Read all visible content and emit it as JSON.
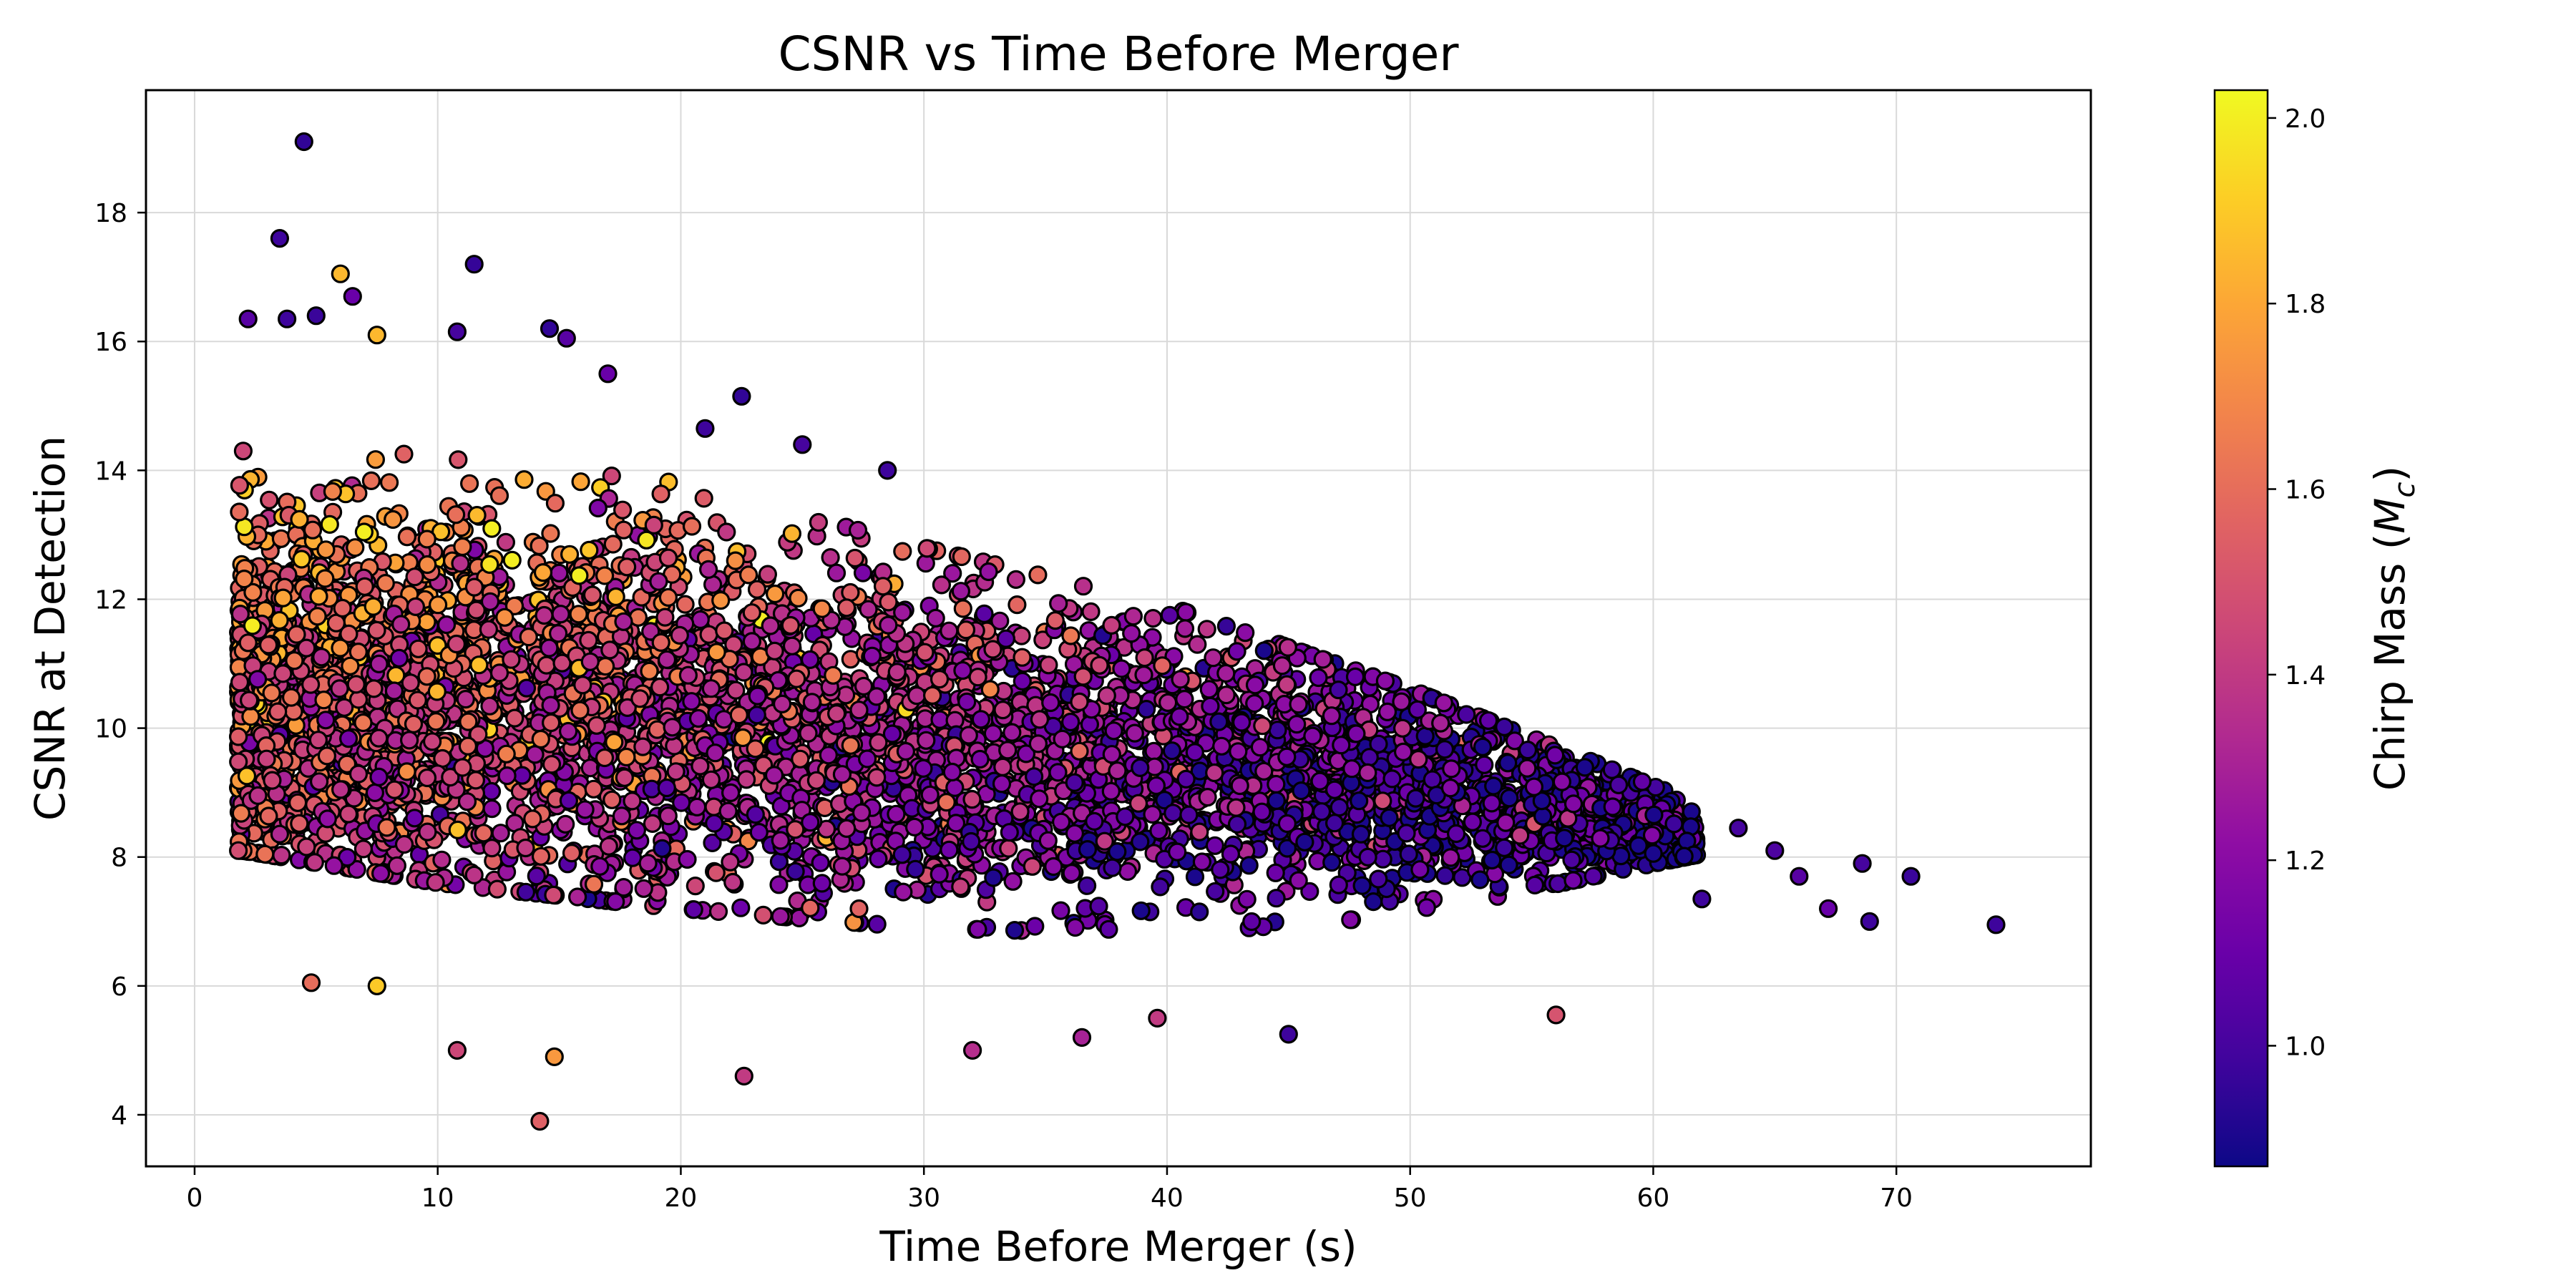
{
  "chart_data": {
    "type": "scatter",
    "title": "CSNR vs Time Before Merger",
    "xlabel": "Time Before Merger (s)",
    "ylabel": "CSNR at Detection",
    "xlim": [
      -2,
      78
    ],
    "ylim": [
      3.2,
      19.9
    ],
    "xticks": [
      0,
      10,
      20,
      30,
      40,
      50,
      60,
      70
    ],
    "yticks": [
      4,
      6,
      8,
      10,
      12,
      14,
      16,
      18
    ],
    "grid": true,
    "colormap": "plasma",
    "colorbar": {
      "label": "Chirp Mass (M_c)",
      "label_main": "Chirp Mass (",
      "label_symbol": "M",
      "label_sub": "c",
      "label_close": ")",
      "range": [
        0.87,
        2.03
      ],
      "ticks": [
        1.0,
        1.2,
        1.4,
        1.6,
        1.8,
        2.0
      ],
      "tick_labels": [
        "1.0",
        "1.2",
        "1.4",
        "1.6",
        "1.8",
        "2.0"
      ]
    },
    "colors": {
      "marker_edge": "#000000",
      "grid": "#d9d9d9",
      "plasma_stops": [
        "#0d0887",
        "#41049d",
        "#6a00a8",
        "#8f0da4",
        "#b12a90",
        "#cc4778",
        "#e16462",
        "#f2844b",
        "#fca636",
        "#fcce25",
        "#f0f921"
      ]
    },
    "notes": "Dense cloud of several thousand points; listed points are representative notable/outlier points. The bulk cloud is described by the envelope below and rendered procedurally.",
    "points": [
      {
        "x": 4.5,
        "y": 19.1,
        "c": 0.95
      },
      {
        "x": 3.5,
        "y": 17.6,
        "c": 0.98
      },
      {
        "x": 11.5,
        "y": 17.2,
        "c": 0.96
      },
      {
        "x": 6.0,
        "y": 17.05,
        "c": 1.85
      },
      {
        "x": 6.5,
        "y": 16.7,
        "c": 1.1
      },
      {
        "x": 2.2,
        "y": 16.35,
        "c": 1.05
      },
      {
        "x": 3.8,
        "y": 16.35,
        "c": 0.98
      },
      {
        "x": 5.0,
        "y": 16.4,
        "c": 0.97
      },
      {
        "x": 14.6,
        "y": 16.2,
        "c": 0.95
      },
      {
        "x": 10.8,
        "y": 16.15,
        "c": 1.0
      },
      {
        "x": 15.3,
        "y": 16.05,
        "c": 1.05
      },
      {
        "x": 7.5,
        "y": 16.1,
        "c": 1.85
      },
      {
        "x": 22.5,
        "y": 15.15,
        "c": 0.95
      },
      {
        "x": 17.0,
        "y": 15.5,
        "c": 1.1
      },
      {
        "x": 21.0,
        "y": 14.65,
        "c": 0.98
      },
      {
        "x": 25.0,
        "y": 14.4,
        "c": 1.0
      },
      {
        "x": 28.5,
        "y": 14.0,
        "c": 0.98
      },
      {
        "x": 2.0,
        "y": 14.3,
        "c": 1.45
      },
      {
        "x": 4.8,
        "y": 6.05,
        "c": 1.6
      },
      {
        "x": 7.5,
        "y": 6.0,
        "c": 1.9
      },
      {
        "x": 10.8,
        "y": 5.0,
        "c": 1.45
      },
      {
        "x": 14.8,
        "y": 4.9,
        "c": 1.75
      },
      {
        "x": 14.2,
        "y": 3.9,
        "c": 1.55
      },
      {
        "x": 22.6,
        "y": 4.6,
        "c": 1.4
      },
      {
        "x": 32.0,
        "y": 5.0,
        "c": 1.35
      },
      {
        "x": 36.5,
        "y": 5.2,
        "c": 1.3
      },
      {
        "x": 45.0,
        "y": 5.25,
        "c": 0.98
      },
      {
        "x": 56.0,
        "y": 5.55,
        "c": 1.5
      },
      {
        "x": 39.6,
        "y": 5.5,
        "c": 1.4
      },
      {
        "x": 62.0,
        "y": 7.35,
        "c": 0.98
      },
      {
        "x": 63.5,
        "y": 8.45,
        "c": 1.0
      },
      {
        "x": 65.0,
        "y": 8.1,
        "c": 1.02
      },
      {
        "x": 66.0,
        "y": 7.7,
        "c": 1.05
      },
      {
        "x": 67.2,
        "y": 7.2,
        "c": 1.1
      },
      {
        "x": 68.6,
        "y": 7.9,
        "c": 1.0
      },
      {
        "x": 68.9,
        "y": 7.0,
        "c": 0.98
      },
      {
        "x": 70.6,
        "y": 7.7,
        "c": 0.97
      },
      {
        "x": 74.1,
        "y": 6.95,
        "c": 0.98
      }
    ],
    "envelope": {
      "description": "Approximate upper/lower CSNR bounds of the bulk cloud as a function of time, and mean chirp mass trend",
      "x": [
        2,
        10,
        20,
        30,
        40,
        50,
        60,
        64
      ],
      "y_upper": [
        14.5,
        14.2,
        13.8,
        12.8,
        11.9,
        10.6,
        9.1,
        8.5
      ],
      "y_lower": [
        7.5,
        7.0,
        6.6,
        6.3,
        6.2,
        6.5,
        7.3,
        7.6
      ],
      "y_center": [
        10.5,
        10.5,
        10.2,
        9.8,
        9.6,
        9.1,
        8.4,
        8.0
      ],
      "mean_chirp_mass": [
        1.55,
        1.5,
        1.42,
        1.3,
        1.18,
        1.05,
        0.98,
        0.95
      ]
    }
  }
}
